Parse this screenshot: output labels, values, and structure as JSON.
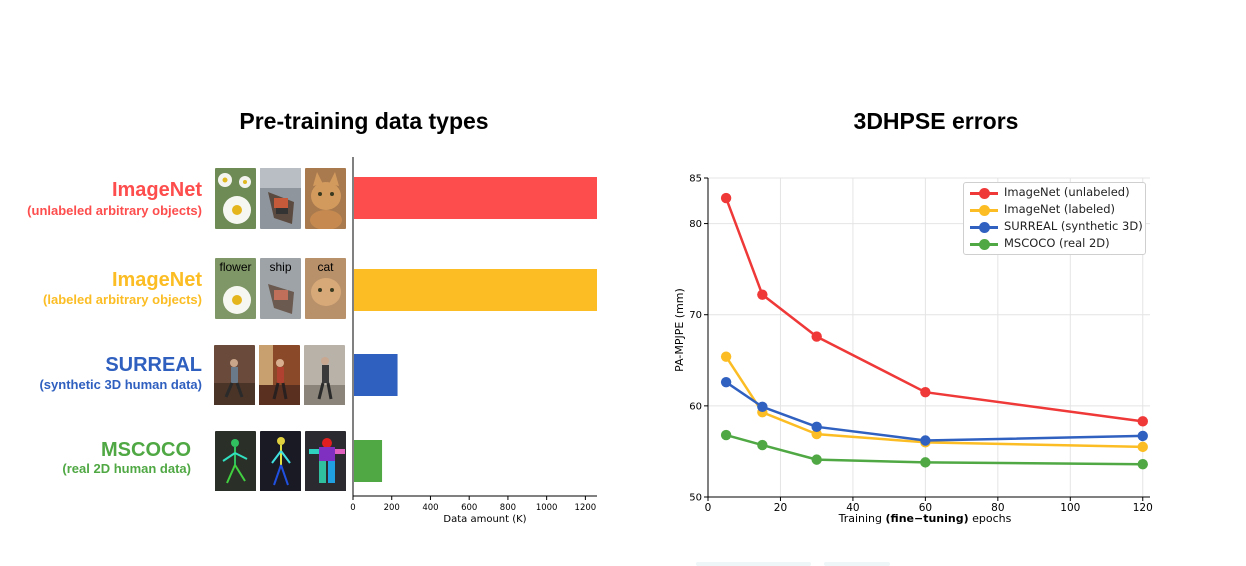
{
  "left_panel": {
    "title": "Pre-training data types",
    "categories": [
      {
        "name": "ImageNet",
        "sub": "(unlabeled arbitrary objects)",
        "color": "#fd4d4d",
        "thumb_labels": [
          "",
          "",
          ""
        ],
        "thumbs": [
          "daisy-flower-image",
          "ship-image",
          "cat-image"
        ]
      },
      {
        "name": "ImageNet",
        "sub": "(labeled arbitrary objects)",
        "color": "#fbbd23",
        "thumb_labels": [
          "flower",
          "ship",
          "cat"
        ],
        "thumbs": [
          "daisy-flower-image",
          "ship-image",
          "cat-image"
        ]
      },
      {
        "name": "SURREAL",
        "sub": "(synthetic 3D human data)",
        "color": "#2f5fbf",
        "thumb_labels": [
          "",
          "",
          ""
        ],
        "thumbs": [
          "synthetic-human-image",
          "synthetic-human-image",
          "synthetic-human-image"
        ]
      },
      {
        "name": "MSCOCO",
        "sub": "(real 2D human data)",
        "color": "#4fa843",
        "thumb_labels": [
          "",
          "",
          ""
        ],
        "thumbs": [
          "pose-skeleton-image",
          "pose-skeleton-image",
          "pose-segmentation-image"
        ]
      }
    ]
  },
  "right_panel": {
    "title": "3DHPSE errors"
  },
  "chart_data": [
    {
      "type": "bar",
      "orientation": "horizontal",
      "categories": [
        "ImageNet (unlabeled arbitrary objects)",
        "ImageNet (labeled arbitrary objects)",
        "SURREAL (synthetic 3D human data)",
        "MSCOCO (real 2D human data)"
      ],
      "values": [
        1260,
        1260,
        230,
        150
      ],
      "colors": [
        "#fd4d4d",
        "#fbbd23",
        "#2f5fbf",
        "#4fa843"
      ],
      "xlabel": "Data amount (K)",
      "xlim": [
        0,
        1260
      ],
      "xticks": [
        "0",
        "200",
        "400",
        "600",
        "800",
        "1000",
        "1200"
      ],
      "grid": false
    },
    {
      "type": "line",
      "xlabel_prefix": "Training ",
      "xlabel_bold": "(fine−tuning)",
      "xlabel_suffix": " epochs",
      "ylabel": "PA-MPJPE (mm)",
      "xlim": [
        0,
        122
      ],
      "ylim": [
        50,
        85
      ],
      "xticks": [
        "0",
        "20",
        "40",
        "60",
        "80",
        "100",
        "120"
      ],
      "yticks": [
        "50",
        "60",
        "70",
        "80",
        "85"
      ],
      "x": [
        5,
        15,
        30,
        60,
        120
      ],
      "grid": true,
      "legend_position": "top-right",
      "series": [
        {
          "name": "ImageNet (unlabeled)",
          "color": "#ef3838",
          "values": [
            82.8,
            72.2,
            67.6,
            61.5,
            58.3
          ]
        },
        {
          "name": "ImageNet (labeled)",
          "color": "#fbbd23",
          "values": [
            65.4,
            59.3,
            56.9,
            56.0,
            55.5
          ]
        },
        {
          "name": "SURREAL (synthetic 3D)",
          "color": "#3060c0",
          "values": [
            62.6,
            59.9,
            57.7,
            56.2,
            56.7
          ]
        },
        {
          "name": "MSCOCO (real 2D)",
          "color": "#4fa843",
          "values": [
            56.8,
            55.7,
            54.1,
            53.8,
            53.6
          ]
        }
      ]
    }
  ]
}
